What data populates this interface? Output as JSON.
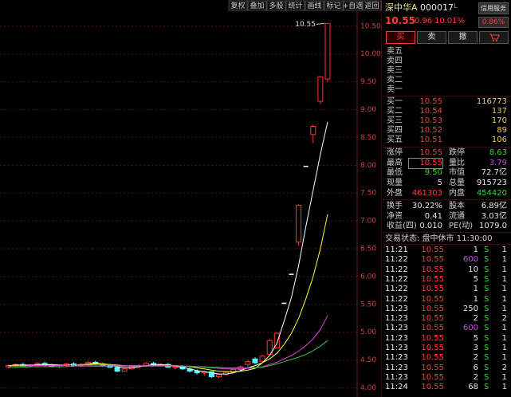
{
  "toolbar": [
    "复权",
    "叠加",
    "多股",
    "统计",
    "画线",
    "标记",
    "+自选",
    "返回"
  ],
  "chart": {
    "type": "candlestick",
    "ylim": [
      3.85,
      10.97
    ],
    "yticks": [
      {
        "value": 10.5,
        "label": "10.50"
      },
      {
        "value": 10,
        "label": "10.00"
      },
      {
        "value": 9.5,
        "label": "9.50"
      },
      {
        "value": 9,
        "label": "9.00"
      },
      {
        "value": 8.5,
        "label": "8.50"
      },
      {
        "value": 8,
        "label": "8.00"
      },
      {
        "value": 7.5,
        "label": "7.50"
      },
      {
        "value": 7,
        "label": "7.00"
      },
      {
        "value": 6.5,
        "label": "6.50"
      },
      {
        "value": 6,
        "label": "6.00"
      },
      {
        "value": 5.5,
        "label": "5.50"
      },
      {
        "value": 5,
        "label": "5.00"
      },
      {
        "value": 4.5,
        "label": "4.50"
      },
      {
        "value": 4,
        "label": "4.00"
      }
    ],
    "price_flag": {
      "value": 10.55,
      "label": "10.55"
    },
    "candles": [
      [
        4.38,
        4.42,
        4.35,
        4.4
      ],
      [
        4.4,
        4.44,
        4.37,
        4.42
      ],
      [
        4.42,
        4.45,
        4.38,
        4.39
      ],
      [
        4.39,
        4.43,
        4.36,
        4.41
      ],
      [
        4.41,
        4.46,
        4.39,
        4.44
      ],
      [
        4.44,
        4.47,
        4.4,
        4.41
      ],
      [
        4.41,
        4.43,
        4.37,
        4.38
      ],
      [
        4.38,
        4.42,
        4.35,
        4.4
      ],
      [
        4.4,
        4.45,
        4.38,
        4.43
      ],
      [
        4.43,
        4.46,
        4.39,
        4.4
      ],
      [
        4.4,
        4.44,
        4.37,
        4.42
      ],
      [
        4.42,
        4.48,
        4.4,
        4.46
      ],
      [
        4.46,
        4.49,
        4.41,
        4.43
      ],
      [
        4.43,
        4.45,
        4.38,
        4.4
      ],
      [
        4.4,
        4.43,
        4.36,
        4.37
      ],
      [
        4.37,
        4.39,
        4.28,
        4.3
      ],
      [
        4.3,
        4.36,
        4.29,
        4.34
      ],
      [
        4.34,
        4.4,
        4.33,
        4.38
      ],
      [
        4.38,
        4.42,
        4.35,
        4.4
      ],
      [
        4.4,
        4.46,
        4.39,
        4.44
      ],
      [
        4.44,
        4.47,
        4.4,
        4.41
      ],
      [
        4.41,
        4.44,
        4.38,
        4.42
      ],
      [
        4.42,
        4.45,
        4.36,
        4.37
      ],
      [
        4.37,
        4.4,
        4.33,
        4.38
      ],
      [
        4.38,
        4.41,
        4.32,
        4.34
      ],
      [
        4.34,
        4.37,
        4.28,
        4.3
      ],
      [
        4.3,
        4.33,
        4.24,
        4.27
      ],
      [
        4.27,
        4.31,
        4.22,
        4.29
      ],
      [
        4.29,
        4.3,
        4.18,
        4.2
      ],
      [
        4.2,
        4.26,
        4.17,
        4.24
      ],
      [
        4.24,
        4.3,
        4.22,
        4.28
      ],
      [
        4.28,
        4.35,
        4.26,
        4.33
      ],
      [
        4.33,
        4.4,
        4.31,
        4.38
      ],
      [
        4.42,
        4.5,
        4.38,
        4.47
      ],
      [
        4.52,
        4.55,
        4.42,
        4.45
      ],
      [
        4.48,
        4.6,
        4.46,
        4.57
      ],
      [
        4.6,
        4.88,
        4.58,
        4.85
      ],
      [
        4.72,
        5.0,
        4.7,
        4.98
      ],
      [
        5.52,
        5.52,
        5.52,
        5.52
      ],
      [
        6.04,
        6.04,
        6.04,
        6.04
      ],
      [
        6.62,
        7.3,
        6.55,
        7.28
      ],
      [
        7.98,
        7.98,
        7.98,
        7.98
      ],
      [
        8.55,
        8.73,
        8.4,
        8.7
      ],
      [
        9.15,
        9.59,
        9.1,
        9.59
      ],
      [
        9.55,
        10.55,
        9.5,
        10.55
      ]
    ],
    "ma": [
      {
        "color": "#ffffff",
        "values": [
          4.4,
          4.41,
          4.41,
          4.4,
          4.42,
          4.42,
          4.41,
          4.4,
          4.41,
          4.42,
          4.41,
          4.43,
          4.44,
          4.43,
          4.41,
          4.38,
          4.36,
          4.36,
          4.38,
          4.4,
          4.42,
          4.42,
          4.41,
          4.39,
          4.37,
          4.34,
          4.31,
          4.29,
          4.27,
          4.25,
          4.25,
          4.27,
          4.31,
          4.36,
          4.4,
          4.45,
          4.58,
          4.8,
          5.2,
          5.62,
          6.2,
          6.9,
          7.55,
          8.2,
          8.78
        ]
      },
      {
        "color": "#ffff33",
        "values": [
          4.4,
          4.4,
          4.41,
          4.41,
          4.41,
          4.42,
          4.42,
          4.41,
          4.41,
          4.41,
          4.42,
          4.42,
          4.43,
          4.43,
          4.42,
          4.41,
          4.4,
          4.39,
          4.39,
          4.39,
          4.4,
          4.41,
          4.41,
          4.4,
          4.39,
          4.38,
          4.36,
          4.34,
          4.32,
          4.3,
          4.29,
          4.29,
          4.3,
          4.32,
          4.35,
          4.45,
          4.52,
          4.62,
          4.78,
          4.98,
          5.25,
          5.6,
          6.0,
          6.5,
          7.12
        ]
      },
      {
        "color": "#e040e0",
        "values": [
          4.39,
          4.39,
          4.39,
          4.4,
          4.4,
          4.4,
          4.4,
          4.4,
          4.41,
          4.41,
          4.41,
          4.41,
          4.41,
          4.41,
          4.41,
          4.4,
          4.4,
          4.4,
          4.4,
          4.4,
          4.4,
          4.4,
          4.4,
          4.4,
          4.39,
          4.39,
          4.38,
          4.37,
          4.36,
          4.35,
          4.34,
          4.34,
          4.34,
          4.35,
          4.36,
          4.38,
          4.42,
          4.46,
          4.52,
          4.58,
          4.66,
          4.76,
          4.88,
          5.05,
          5.3
        ]
      },
      {
        "color": "#40c040",
        "values": [
          4.37,
          4.37,
          4.37,
          4.38,
          4.38,
          4.38,
          4.38,
          4.38,
          4.38,
          4.39,
          4.39,
          4.39,
          4.39,
          4.39,
          4.39,
          4.39,
          4.39,
          4.39,
          4.39,
          4.39,
          4.39,
          4.39,
          4.39,
          4.39,
          4.39,
          4.38,
          4.38,
          4.38,
          4.37,
          4.37,
          4.36,
          4.36,
          4.36,
          4.36,
          4.37,
          4.37,
          4.4,
          4.43,
          4.47,
          4.51,
          4.55,
          4.6,
          4.67,
          4.75,
          4.85
        ]
      }
    ]
  },
  "quote": {
    "name": "深中华A",
    "code": "000017",
    "tag": "L",
    "service": "信用服务",
    "service_value": "0.86%",
    "price": "10.55",
    "change": "0.96",
    "change_pct": "10.01%"
  },
  "buttons": [
    "买",
    "卖",
    "撤"
  ],
  "sell": [
    "卖五",
    "卖四",
    "卖三",
    "卖二",
    "卖一"
  ],
  "buy": [
    [
      "买一",
      "10.55",
      "116773"
    ],
    [
      "买二",
      "10.54",
      "137"
    ],
    [
      "买三",
      "10.53",
      "170"
    ],
    [
      "买四",
      "10.52",
      "89"
    ],
    [
      "买五",
      "10.51",
      "106"
    ]
  ],
  "stats": [
    [
      "涨停",
      "10.55",
      "跌停",
      "8.63"
    ],
    [
      "最高",
      "10.55",
      "量比",
      "3.79"
    ],
    [
      "最低",
      "9.50",
      "市值",
      "72.7亿"
    ],
    [
      "现量",
      "5",
      "总量",
      "915723"
    ],
    [
      "外盘",
      "461303",
      "内盘",
      "454420"
    ]
  ],
  "fundamentals": [
    [
      "换手",
      "30.22%",
      "股本",
      "6.89亿"
    ],
    [
      "净资",
      "0.41",
      "流通",
      "3.03亿"
    ],
    [
      "收益(四)",
      "0.010",
      "PE(动)",
      "1079.0"
    ]
  ],
  "status": "交易状态: 盘中休市 11:30:00",
  "trades": [
    [
      "11:21",
      "10.55",
      "1",
      "S",
      "1"
    ],
    [
      "11:22",
      "10.55",
      "600",
      "S",
      "1"
    ],
    [
      "11:22",
      "10.55",
      "10",
      "S",
      "1"
    ],
    [
      "11:22",
      "10.55",
      "5",
      "S",
      "1"
    ],
    [
      "11:22",
      "10.55",
      "1",
      "S",
      "1"
    ],
    [
      "11:22",
      "10.55",
      "1",
      "S",
      "1"
    ],
    [
      "11:23",
      "10.55",
      "250",
      "S",
      "1"
    ],
    [
      "11:23",
      "10.55",
      "2",
      "S",
      "2"
    ],
    [
      "11:23",
      "10.55",
      "600",
      "S",
      "1"
    ],
    [
      "11:23",
      "10.55",
      "5",
      "S",
      "1"
    ],
    [
      "11:23",
      "10.55",
      "3",
      "S",
      "1"
    ],
    [
      "11:23",
      "10.55",
      "2",
      "S",
      "1"
    ],
    [
      "11:23",
      "10.55",
      "6",
      "S",
      "2"
    ],
    [
      "11:23",
      "10.55",
      "2",
      "S",
      "1"
    ],
    [
      "11:24",
      "10.55",
      "68",
      "S",
      "1"
    ]
  ]
}
